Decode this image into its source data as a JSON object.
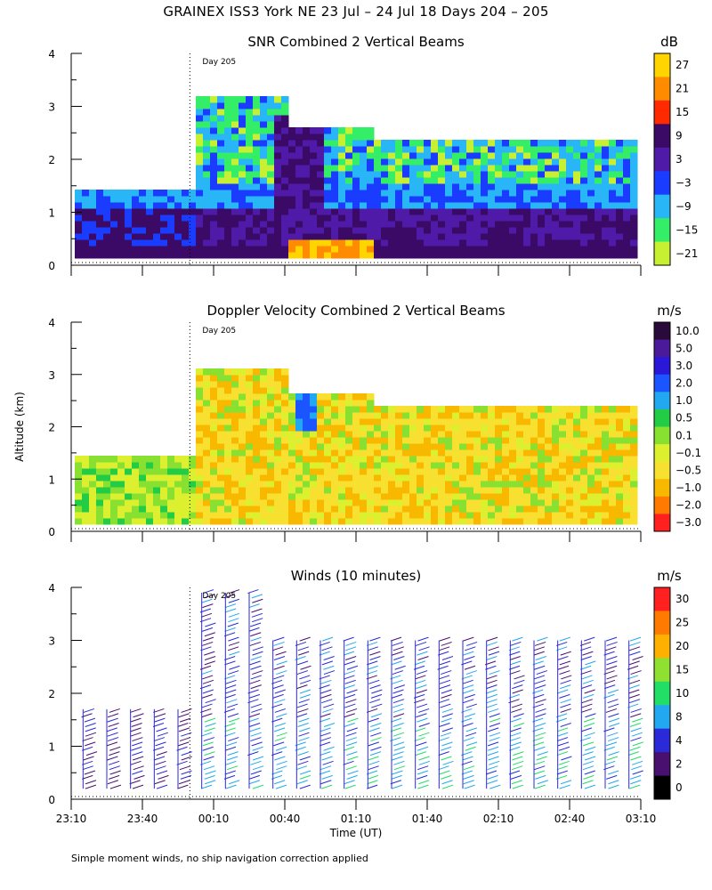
{
  "title": "GRAINEX ISS3 York NE  23 Jul – 24 Jul 18 Days 204 – 205",
  "footnote": "Simple moment winds, no ship navigation correction applied",
  "chart_data": [
    {
      "type": "heatmap",
      "title": "SNR Combined 2 Vertical Beams",
      "ylabel": "",
      "ylim": [
        0,
        4
      ],
      "yticks": [
        "0",
        "1",
        "2",
        "3",
        "4"
      ],
      "xlim": [
        "23:10",
        "03:10"
      ],
      "annotation": "Day 205",
      "day_boundary": "00:00",
      "colorbar": {
        "unit": "dB",
        "labels": [
          "27",
          "21",
          "15",
          "9",
          "3",
          "−3",
          "−9",
          "−15",
          "−21"
        ],
        "colors": [
          "#ffd400",
          "#ff8c00",
          "#ff2a00",
          "#3a0a66",
          "#4f1aa8",
          "#1a3cff",
          "#29b6f6",
          "#33ee66",
          "#c8f032"
        ]
      }
    },
    {
      "type": "heatmap",
      "title": "Doppler Velocity Combined 2 Vertical Beams",
      "ylabel": "Altitude (km)",
      "ylim": [
        0,
        4
      ],
      "yticks": [
        "0",
        "1",
        "2",
        "3",
        "4"
      ],
      "xlim": [
        "23:10",
        "03:10"
      ],
      "annotation": "Day 205",
      "day_boundary": "00:00",
      "colorbar": {
        "unit": "m/s",
        "labels": [
          "10.0",
          "5.0",
          "3.0",
          "2.0",
          "1.0",
          "0.5",
          "0.1",
          "−0.1",
          "−0.5",
          "−1.0",
          "−2.0",
          "−3.0"
        ],
        "colors": [
          "#2a0a3a",
          "#4b1a9a",
          "#2a18d8",
          "#1a55ff",
          "#22a8f0",
          "#22cc44",
          "#88e030",
          "#ddf030",
          "#f8e030",
          "#f8b800",
          "#ff7a00",
          "#ff2020"
        ]
      }
    },
    {
      "type": "scatter",
      "title": "Winds (10 minutes)",
      "ylabel": "",
      "xlabel": "Time (UT)",
      "ylim": [
        0,
        4
      ],
      "yticks": [
        "0",
        "1",
        "2",
        "3",
        "4"
      ],
      "xticks": [
        "23:10",
        "23:40",
        "00:10",
        "00:40",
        "01:10",
        "01:40",
        "02:10",
        "02:40",
        "03:10"
      ],
      "annotation": "Day 205",
      "day_boundary": "00:00",
      "profile_times": [
        "23:15",
        "23:25",
        "23:35",
        "23:45",
        "23:55",
        "00:05",
        "00:15",
        "00:25",
        "00:35",
        "00:45",
        "00:55",
        "01:05",
        "01:15",
        "01:25",
        "01:35",
        "01:45",
        "01:55",
        "02:05",
        "02:15",
        "02:25",
        "02:35",
        "02:45",
        "02:55",
        "03:05"
      ],
      "colorbar": {
        "unit": "m/s",
        "labels": [
          "30",
          "25",
          "20",
          "15",
          "10",
          "8",
          "4",
          "2",
          "0"
        ],
        "colors": [
          "#ff2020",
          "#ff7a00",
          "#ffb000",
          "#8fe030",
          "#22dd66",
          "#22a8f0",
          "#2a2ad8",
          "#4a1070",
          "#000000"
        ]
      }
    }
  ]
}
